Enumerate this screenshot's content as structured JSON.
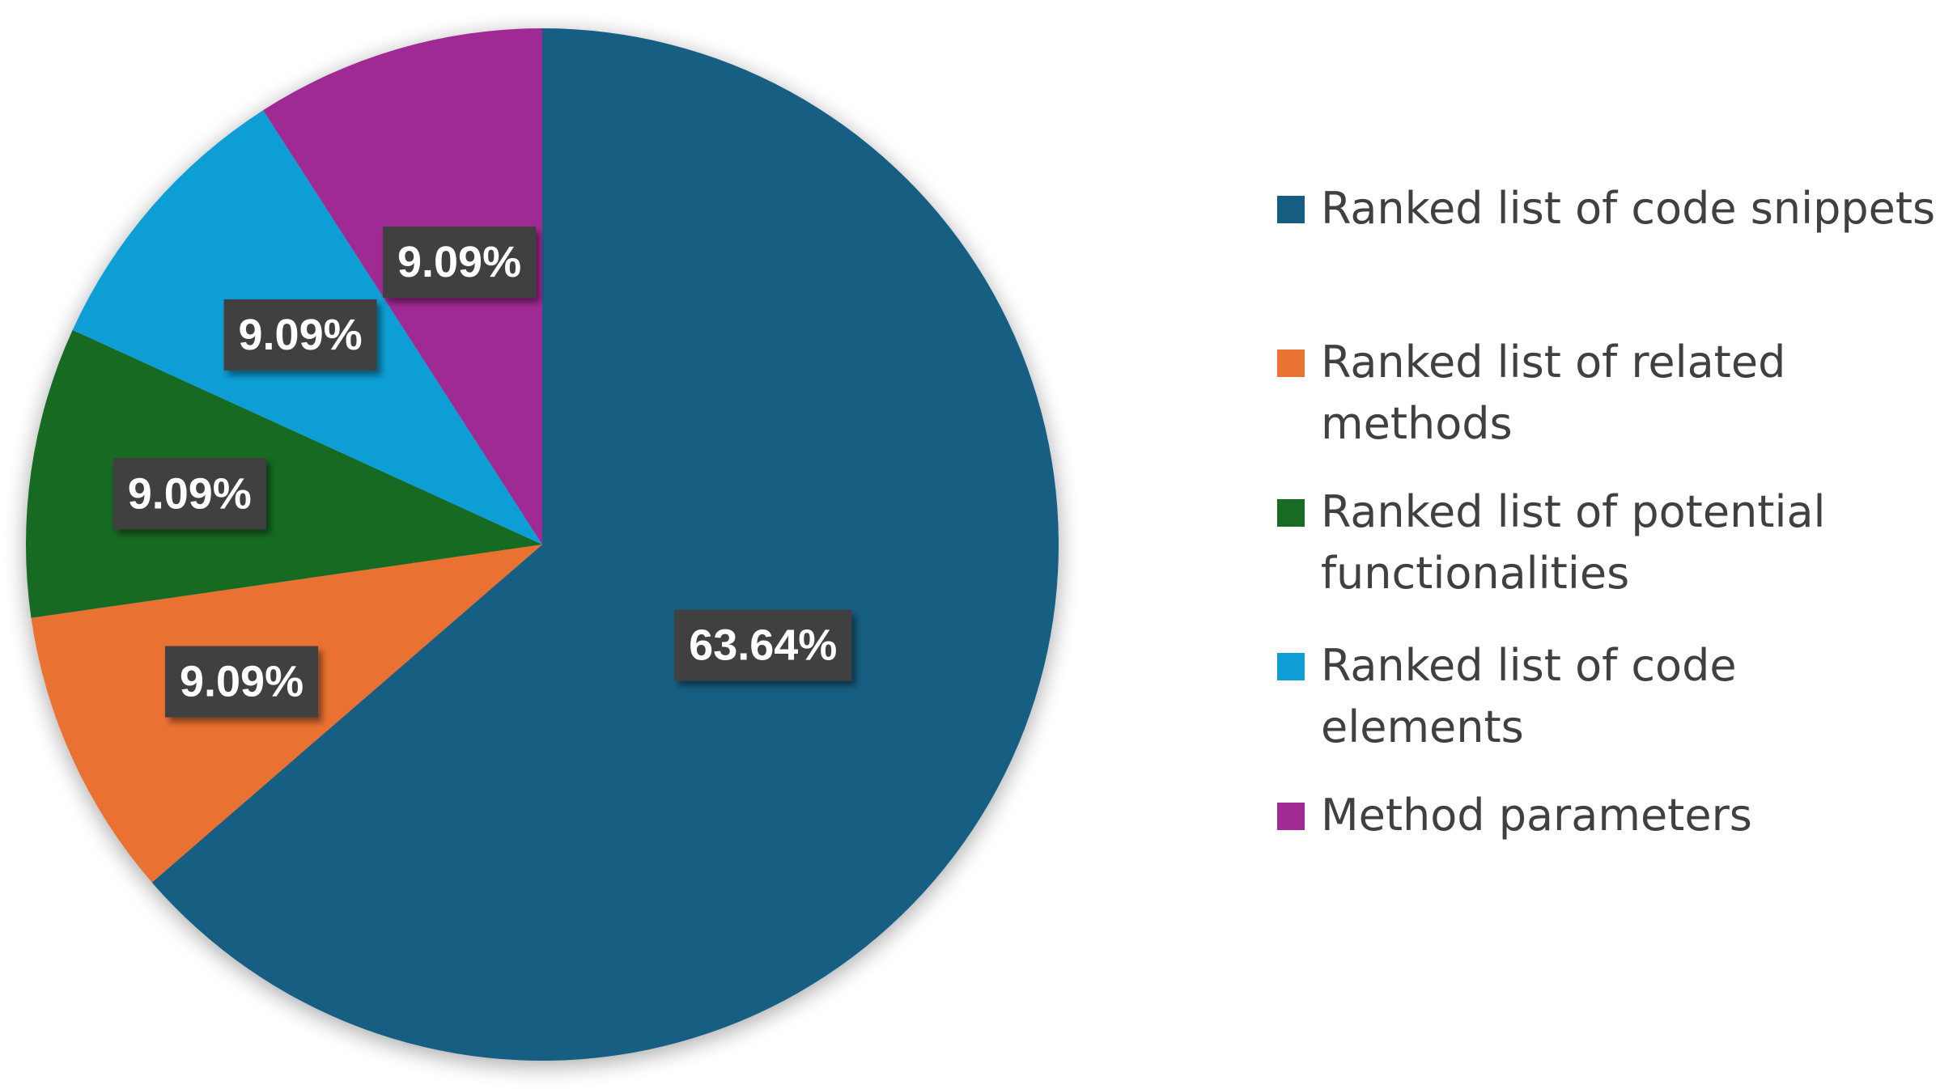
{
  "chart_data": {
    "type": "pie",
    "title": "",
    "start_angle_deg": 0,
    "direction": "clockwise",
    "legend_position": "right",
    "slices": [
      {
        "name": "Ranked list of code snippets",
        "value": 63.64,
        "label": "63.64%",
        "color": "#155E82"
      },
      {
        "name": "Ranked list of related methods",
        "value": 9.09,
        "label": "9.09%",
        "color": "#E97132"
      },
      {
        "name": "Ranked list of potential functionalities",
        "value": 9.09,
        "label": "9.09%",
        "color": "#196B24"
      },
      {
        "name": "Ranked list of code elements",
        "value": 9.09,
        "label": "9.09%",
        "color": "#0F9ED5"
      },
      {
        "name": "Method parameters",
        "value": 9.09,
        "label": "9.09%",
        "color": "#A02B93"
      }
    ]
  }
}
